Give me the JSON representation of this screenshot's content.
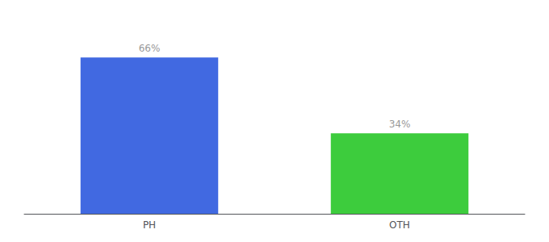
{
  "chart_data": {
    "type": "bar",
    "categories": [
      "PH",
      "OTH"
    ],
    "values": [
      66,
      34
    ],
    "value_labels": [
      "66%",
      "34%"
    ],
    "colors": [
      "#4169e1",
      "#3dcc3d"
    ],
    "ylim": [
      0,
      80
    ],
    "grid": false,
    "tick_labels": "x",
    "data_labels": true
  }
}
